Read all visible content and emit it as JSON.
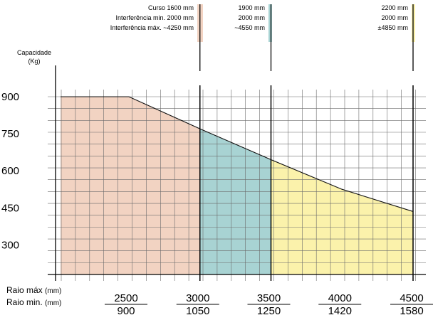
{
  "chart_data": {
    "type": "area",
    "title": "",
    "ylabel": [
      "Capacidade",
      "(Kg)"
    ],
    "y_ticks": [
      900,
      750,
      600,
      450,
      300
    ],
    "ylim": [
      180,
      960
    ],
    "xlim": [
      2500,
      4500
    ],
    "x_label_max": {
      "label": "Raio máx",
      "unit": "(mm)"
    },
    "x_label_min": {
      "label": "Raio min.",
      "unit": "(mm)"
    },
    "x_ticks_max": [
      "2500",
      "3000",
      "3500",
      "4000",
      "4500"
    ],
    "x_ticks_min": [
      "900",
      "1050",
      "1250",
      "1420",
      "1580"
    ],
    "capacity_curve": {
      "x": [
        2500,
        3000,
        3500,
        4000,
        4500
      ],
      "y": [
        900,
        770,
        645,
        525,
        435
      ]
    },
    "series": [
      {
        "color": "#f2d3c2",
        "legend": [
          "Curso 1600 mm",
          "Interferência min. 2000 mm",
          "Interferência máx. ~4250 mm"
        ]
      },
      {
        "color": "#a8d3d3",
        "legend": [
          "1900 mm",
          "2000 mm",
          "~4550 mm"
        ]
      },
      {
        "color": "#fbf2ab",
        "legend": [
          "2200 mm",
          "2000 mm",
          "±4850 mm"
        ]
      }
    ],
    "grid": true
  }
}
